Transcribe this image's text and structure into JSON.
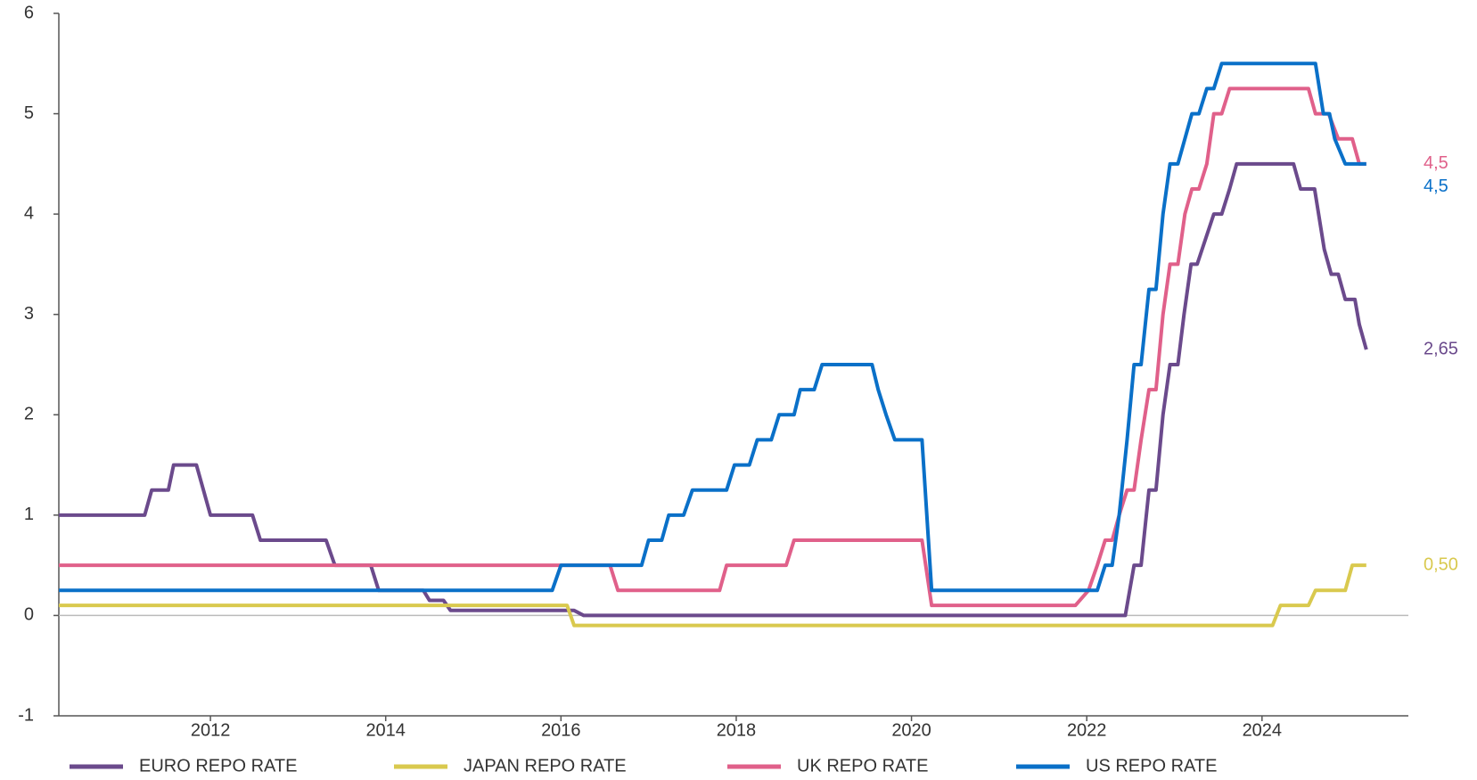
{
  "chart_data": {
    "type": "line",
    "xlim": [
      2010.27,
      2025.67
    ],
    "xticks": [
      2012,
      2014,
      2016,
      2018,
      2020,
      2022,
      2024
    ],
    "ylim": [
      -1,
      6
    ],
    "yticks": [
      -1,
      0,
      1,
      2,
      3,
      4,
      5,
      6
    ],
    "legend": "bottom",
    "series": [
      {
        "name": "EURO REPO RATE",
        "color": "#6b4a8c",
        "end_label": "2,65",
        "x": [
          2010.27,
          2011.25,
          2011.33,
          2011.52,
          2011.58,
          2011.84,
          2011.92,
          2012.0,
          2012.48,
          2012.57,
          2013.32,
          2013.42,
          2013.83,
          2013.92,
          2014.43,
          2014.5,
          2014.66,
          2014.74,
          2016.15,
          2016.26,
          2022.44,
          2022.54,
          2022.62,
          2022.71,
          2022.79,
          2022.87,
          2022.95,
          2023.04,
          2023.11,
          2023.19,
          2023.26,
          2023.45,
          2023.54,
          2023.63,
          2023.71,
          2024.36,
          2024.44,
          2024.6,
          2024.71,
          2024.79,
          2024.87,
          2024.95,
          2025.06,
          2025.11,
          2025.19
        ],
        "values": [
          1,
          1,
          1.25,
          1.25,
          1.5,
          1.5,
          1.25,
          1,
          1,
          0.75,
          0.75,
          0.5,
          0.5,
          0.25,
          0.25,
          0.15,
          0.15,
          0.05,
          0.05,
          0,
          0,
          0.5,
          0.5,
          1.25,
          1.25,
          2,
          2.5,
          2.5,
          3,
          3.5,
          3.5,
          4,
          4,
          4.25,
          4.5,
          4.5,
          4.25,
          4.25,
          3.65,
          3.4,
          3.4,
          3.15,
          3.15,
          2.9,
          2.65
        ]
      },
      {
        "name": "JAPAN REPO RATE",
        "color": "#d9c94e",
        "end_label": "0,50",
        "x": [
          2010.27,
          2016.07,
          2016.15,
          2024.12,
          2024.21,
          2024.53,
          2024.61,
          2024.95,
          2025.03,
          2025.19
        ],
        "values": [
          0.1,
          0.1,
          -0.1,
          -0.1,
          0.1,
          0.1,
          0.25,
          0.25,
          0.5,
          0.5
        ]
      },
      {
        "name": "UK REPO RATE",
        "color": "#e0608a",
        "end_label": "4,5",
        "x": [
          2010.27,
          2016.56,
          2016.65,
          2017.81,
          2017.89,
          2018.57,
          2018.66,
          2020.12,
          2020.23,
          2021.87,
          2022.02,
          2022.12,
          2022.21,
          2022.29,
          2022.37,
          2022.46,
          2022.54,
          2022.62,
          2022.71,
          2022.79,
          2022.87,
          2022.95,
          2023.04,
          2023.12,
          2023.2,
          2023.28,
          2023.37,
          2023.45,
          2023.54,
          2023.63,
          2024.53,
          2024.61,
          2024.76,
          2024.87,
          2025.03,
          2025.11,
          2025.19
        ],
        "values": [
          0.5,
          0.5,
          0.25,
          0.25,
          0.5,
          0.5,
          0.75,
          0.75,
          0.1,
          0.1,
          0.25,
          0.5,
          0.75,
          0.75,
          1,
          1.25,
          1.25,
          1.75,
          2.25,
          2.25,
          3,
          3.5,
          3.5,
          4,
          4.25,
          4.25,
          4.5,
          5,
          5,
          5.25,
          5.25,
          5,
          5,
          4.75,
          4.75,
          4.5,
          4.5
        ]
      },
      {
        "name": "US REPO RATE",
        "color": "#0a70c8",
        "end_label": "4,5",
        "x": [
          2010.27,
          2015.9,
          2016.0,
          2016.92,
          2017.0,
          2017.15,
          2017.23,
          2017.4,
          2017.5,
          2017.89,
          2017.98,
          2018.15,
          2018.24,
          2018.4,
          2018.49,
          2018.66,
          2018.73,
          2018.89,
          2018.98,
          2019.55,
          2019.62,
          2019.71,
          2019.81,
          2020.12,
          2020.23,
          2022.12,
          2022.21,
          2022.29,
          2022.37,
          2022.46,
          2022.54,
          2022.62,
          2022.71,
          2022.79,
          2022.87,
          2022.95,
          2023.04,
          2023.12,
          2023.2,
          2023.28,
          2023.37,
          2023.45,
          2023.54,
          2024.61,
          2024.7,
          2024.77,
          2024.83,
          2024.95,
          2025.19
        ],
        "values": [
          0.25,
          0.25,
          0.5,
          0.5,
          0.75,
          0.75,
          1,
          1,
          1.25,
          1.25,
          1.5,
          1.5,
          1.75,
          1.75,
          2,
          2,
          2.25,
          2.25,
          2.5,
          2.5,
          2.25,
          2,
          1.75,
          1.75,
          0.25,
          0.25,
          0.5,
          0.5,
          1,
          1.75,
          2.5,
          2.5,
          3.25,
          3.25,
          4,
          4.5,
          4.5,
          4.75,
          5,
          5,
          5.25,
          5.25,
          5.5,
          5.5,
          5,
          5,
          4.75,
          4.5,
          4.5
        ]
      }
    ]
  }
}
